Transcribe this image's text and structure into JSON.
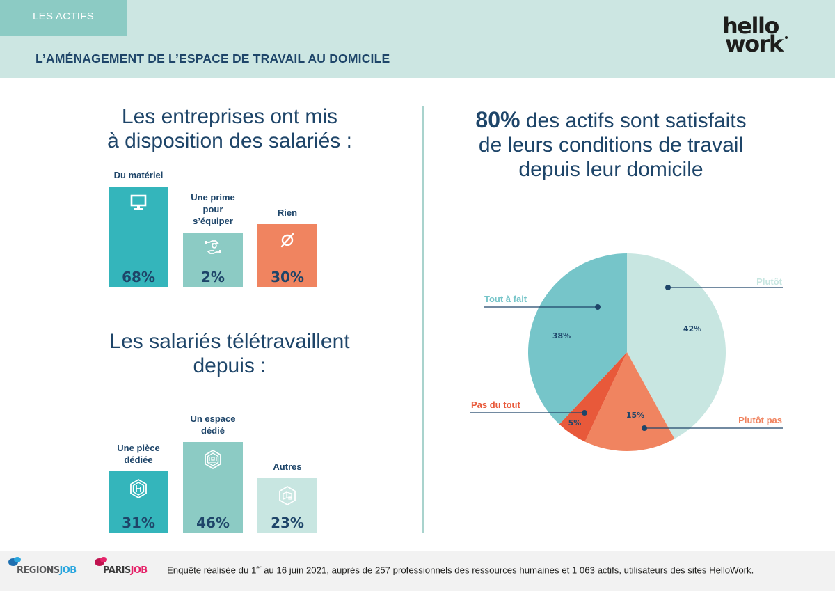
{
  "header": {
    "section_tab": "LES ACTIFS",
    "title": "L’AMÉNAGEMENT DE L’ESPACE DE TRAVAIL AU DOMICILE",
    "brand_logo": {
      "line1": "hello",
      "line2": "work",
      "alt": "hellowork"
    }
  },
  "colors": {
    "header_bg": "#cce6e2",
    "tab_bg": "#8ccbc4",
    "navy": "#1e4569",
    "teal_dark": "#34b5bb",
    "teal_mid": "#8ccbc4",
    "teal_light": "#c8e6e1",
    "orange": "#f08460",
    "orange_dark": "#e8593a",
    "pie_teal": "#76c5c9"
  },
  "left": {
    "block1": {
      "title": "Les entreprises ont mis à disposition des salariés :",
      "title_lines": [
        "Les entreprises ont mis",
        "à disposition des salariés :"
      ]
    },
    "block2": {
      "title": "Les salariés télétravaillent depuis :",
      "title_lines": [
        "Les salariés télétravaillent",
        "depuis :"
      ]
    }
  },
  "right": {
    "headline_bold": "80%",
    "headline_rest_line1": " des actifs sont satisfaits",
    "headline_line2": "de leurs conditions de travail",
    "headline_line3": "depuis leur domicile"
  },
  "chart_data": [
    {
      "type": "bar",
      "title": "Les entreprises ont mis à disposition des salariés :",
      "categories": [
        "Du matériel",
        "Une prime pour s’équiper",
        "Rien"
      ],
      "category_lines": [
        [
          "Du matériel"
        ],
        [
          "Une prime",
          "pour",
          "s’équiper"
        ],
        [
          "Rien"
        ]
      ],
      "values": [
        68,
        2,
        30
      ],
      "value_labels": [
        "68%",
        "2%",
        "30%"
      ],
      "icons": [
        "computer-monitor-icon",
        "hands-money-icon",
        "empty-set-icon"
      ],
      "bar_colors": [
        "#34b5bb",
        "#8ccbc4",
        "#f08460"
      ],
      "unit": "%",
      "xlabel": "",
      "ylabel": "",
      "note": "Bar heights are stylized (not strictly proportional)"
    },
    {
      "type": "bar",
      "title": "Les salariés télétravaillent depuis :",
      "categories": [
        "Une pièce dédiée",
        "Un espace dédié",
        "Autres"
      ],
      "category_lines": [
        [
          "Une pièce",
          "dédiée"
        ],
        [
          "Un espace",
          "dédié"
        ],
        [
          "Autres"
        ]
      ],
      "values": [
        31,
        46,
        23
      ],
      "value_labels": [
        "31%",
        "46%",
        "23%"
      ],
      "icons": [
        "chair-room-icon",
        "desk-space-icon",
        "sofa-icon"
      ],
      "bar_colors": [
        "#34b5bb",
        "#8ccbc4",
        "#c8e6e1"
      ],
      "unit": "%",
      "xlabel": "",
      "ylabel": ""
    },
    {
      "type": "pie",
      "title": "80% des actifs sont satisfaits de leurs conditions de travail depuis leur domicile",
      "slices": [
        {
          "label": "Plutôt",
          "value": 42,
          "value_label": "42%",
          "color": "#c8e6e1",
          "label_color": "#c8e6e1"
        },
        {
          "label": "Plutôt pas",
          "value": 15,
          "value_label": "15%",
          "color": "#f08460",
          "label_color": "#f08460"
        },
        {
          "label": "Pas du tout",
          "value": 5,
          "value_label": "5%",
          "color": "#e8593a",
          "label_color": "#e8593a"
        },
        {
          "label": "Tout à fait",
          "value": 38,
          "value_label": "38%",
          "color": "#76c5c9",
          "label_color": "#76c5c9"
        }
      ],
      "start": "top",
      "direction": "clockwise"
    }
  ],
  "footer": {
    "logo1": {
      "part1": "REGIONS",
      "part2": "JOB"
    },
    "logo2": {
      "part1": "PARIS",
      "part2": "JOB"
    },
    "text_before_sup": "Enquête réalisée du 1",
    "sup": "er",
    "text_after_sup": " au 16 juin 2021, auprès de 257 professionnels des ressources humaines et 1 063 actifs, utilisateurs des sites HelloWork."
  }
}
